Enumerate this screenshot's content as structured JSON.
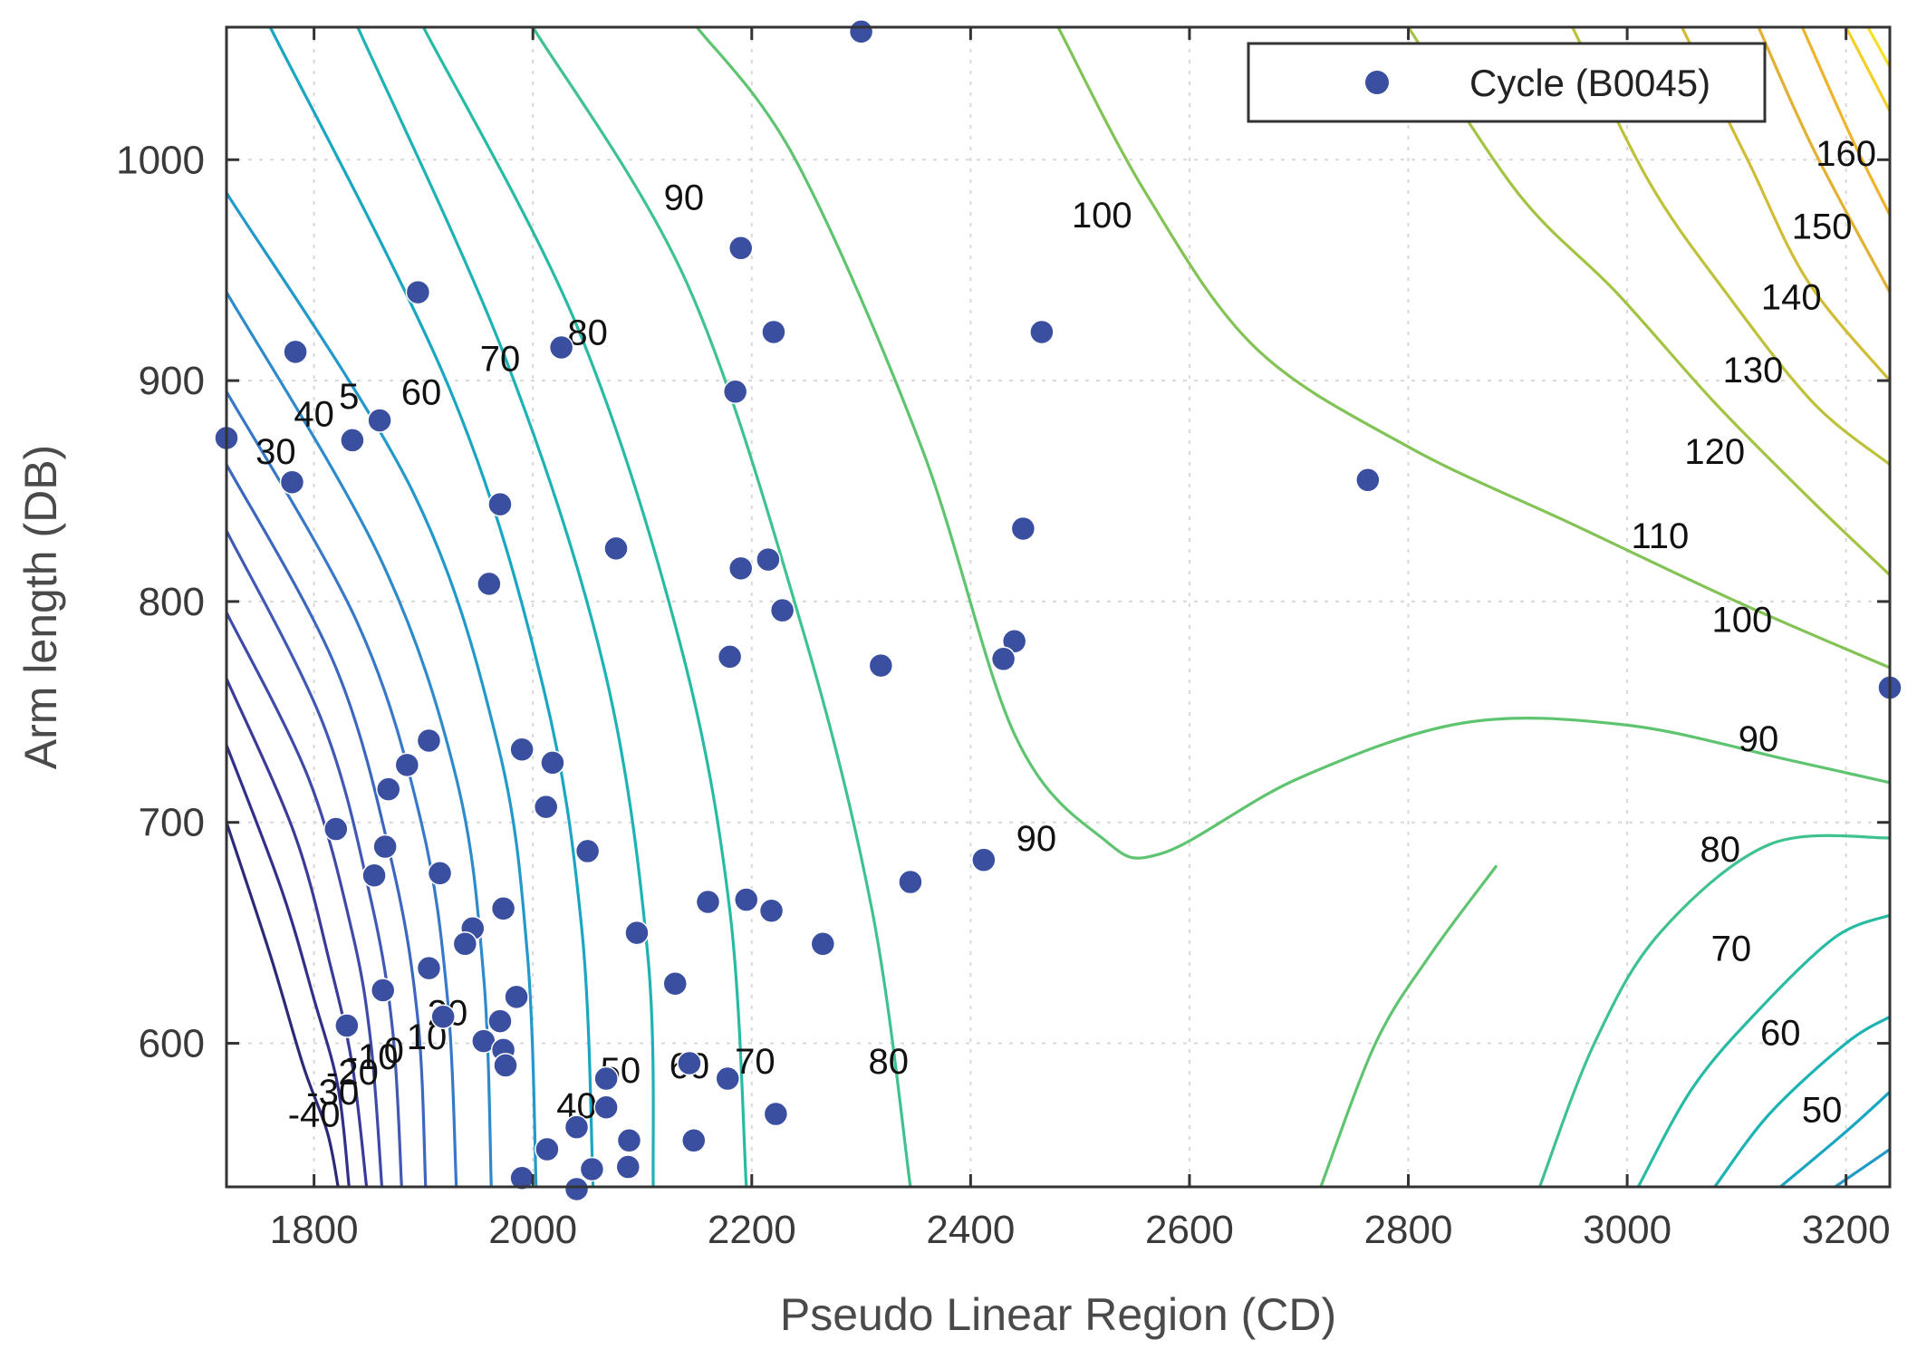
{
  "chart_data": {
    "type": "scatter",
    "subtype": "contour-overlay",
    "title": "",
    "xlabel": "Pseudo Linear Region (CD)",
    "ylabel": "Arm length (DB)",
    "xlim": [
      1720,
      3240
    ],
    "ylim": [
      535,
      1060
    ],
    "xticks": [
      1800,
      2000,
      2200,
      2400,
      2600,
      2800,
      3000,
      3200
    ],
    "yticks": [
      600,
      700,
      800,
      900,
      1000
    ],
    "xtick_labels": [
      "1800",
      "2000",
      "2200",
      "2400",
      "2600",
      "2800",
      "3000",
      "3200"
    ],
    "ytick_labels": [
      "600",
      "700",
      "800",
      "900",
      "1000"
    ],
    "grid": true,
    "legend": {
      "position": "top-right",
      "entries": [
        "Cycle (B0045)"
      ]
    },
    "series": [
      {
        "name": "Cycle (B0045)",
        "color": "#3a4fa0",
        "points": [
          [
            1720,
            874
          ],
          [
            1783,
            913
          ],
          [
            1780,
            854
          ],
          [
            1835,
            873
          ],
          [
            1860,
            882
          ],
          [
            1895,
            940
          ],
          [
            1970,
            844
          ],
          [
            1960,
            808
          ],
          [
            2026,
            915
          ],
          [
            2076,
            824
          ],
          [
            2190,
            960
          ],
          [
            2185,
            895
          ],
          [
            2220,
            922
          ],
          [
            2190,
            815
          ],
          [
            2215,
            819
          ],
          [
            2228,
            796
          ],
          [
            2180,
            775
          ],
          [
            2318,
            771
          ],
          [
            2300,
            1058
          ],
          [
            2465,
            922
          ],
          [
            2448,
            833
          ],
          [
            2440,
            782
          ],
          [
            2430,
            774
          ],
          [
            2763,
            855
          ],
          [
            3240,
            761
          ],
          [
            1905,
            737
          ],
          [
            1990,
            733
          ],
          [
            2018,
            727
          ],
          [
            1885,
            726
          ],
          [
            1868,
            715
          ],
          [
            2012,
            707
          ],
          [
            1820,
            697
          ],
          [
            1865,
            689
          ],
          [
            2050,
            687
          ],
          [
            1855,
            676
          ],
          [
            1915,
            677
          ],
          [
            2345,
            673
          ],
          [
            2412,
            683
          ],
          [
            2160,
            664
          ],
          [
            2195,
            665
          ],
          [
            2218,
            660
          ],
          [
            1973,
            661
          ],
          [
            2265,
            645
          ],
          [
            2095,
            650
          ],
          [
            1945,
            652
          ],
          [
            1938,
            645
          ],
          [
            1905,
            634
          ],
          [
            2130,
            627
          ],
          [
            1863,
            624
          ],
          [
            1985,
            621
          ],
          [
            1918,
            612
          ],
          [
            1970,
            610
          ],
          [
            1830,
            608
          ],
          [
            1955,
            601
          ],
          [
            1973,
            597
          ],
          [
            1975,
            590
          ],
          [
            2143,
            591
          ],
          [
            2178,
            584
          ],
          [
            2067,
            584
          ],
          [
            2067,
            571
          ],
          [
            2222,
            568
          ],
          [
            2040,
            562
          ],
          [
            2088,
            556
          ],
          [
            2147,
            556
          ],
          [
            2013,
            552
          ],
          [
            2054,
            543
          ],
          [
            2087,
            544
          ],
          [
            1990,
            539
          ],
          [
            2040,
            534
          ]
        ]
      }
    ],
    "contours": [
      {
        "level": -40,
        "label": "-40",
        "color": "#2c2a78",
        "points": [
          [
            1720,
            700
          ],
          [
            1760,
            640
          ],
          [
            1790,
            590
          ],
          [
            1812,
            560
          ],
          [
            1822,
            535
          ]
        ]
      },
      {
        "level": -30,
        "label": "-30",
        "color": "#322f8a",
        "points": [
          [
            1720,
            735
          ],
          [
            1770,
            670
          ],
          [
            1800,
            620
          ],
          [
            1822,
            580
          ],
          [
            1832,
            535
          ]
        ]
      },
      {
        "level": -20,
        "label": "-20",
        "color": "#3a3a99",
        "points": [
          [
            1720,
            765
          ],
          [
            1782,
            695
          ],
          [
            1815,
            635
          ],
          [
            1835,
            590
          ],
          [
            1848,
            535
          ]
        ]
      },
      {
        "level": -10,
        "label": "-10",
        "color": "#3f4aa8",
        "points": [
          [
            1720,
            795
          ],
          [
            1795,
            720
          ],
          [
            1835,
            650
          ],
          [
            1852,
            600
          ],
          [
            1862,
            535
          ]
        ]
      },
      {
        "level": 0,
        "label": "0",
        "color": "#4158b4",
        "points": [
          [
            1720,
            832
          ],
          [
            1808,
            745
          ],
          [
            1852,
            665
          ],
          [
            1872,
            605
          ],
          [
            1880,
            535
          ]
        ]
      },
      {
        "level": 10,
        "label": "10",
        "color": "#3d67bf",
        "points": [
          [
            1720,
            862
          ],
          [
            1820,
            770
          ],
          [
            1872,
            680
          ],
          [
            1895,
            610
          ],
          [
            1902,
            535
          ]
        ]
      },
      {
        "level": 20,
        "label": "20",
        "color": "#3878c8",
        "points": [
          [
            1720,
            895
          ],
          [
            1840,
            790
          ],
          [
            1898,
            700
          ],
          [
            1922,
            620
          ],
          [
            1930,
            535
          ]
        ]
      },
      {
        "level": 30,
        "label": "30",
        "color": "#2e8acb",
        "points": [
          [
            1720,
            940
          ],
          [
            1860,
            820
          ],
          [
            1930,
            720
          ],
          [
            1955,
            630
          ],
          [
            1962,
            535
          ]
        ]
      },
      {
        "level": 40,
        "label": "40",
        "color": "#2299c9",
        "points": [
          [
            1720,
            985
          ],
          [
            1890,
            850
          ],
          [
            1968,
            735
          ],
          [
            1995,
            640
          ],
          [
            2003,
            535
          ]
        ]
      },
      {
        "level": 50,
        "label": "50",
        "color": "#18a6c2",
        "points": [
          [
            1760,
            1060
          ],
          [
            1925,
            895
          ],
          [
            2010,
            760
          ],
          [
            2045,
            650
          ],
          [
            2055,
            535
          ]
        ]
      },
      {
        "level": 60,
        "label": "60",
        "color": "#1db2b4",
        "points": [
          [
            1840,
            1060
          ],
          [
            1975,
            910
          ],
          [
            2065,
            770
          ],
          [
            2105,
            640
          ],
          [
            2110,
            535
          ]
        ]
      },
      {
        "level": 70,
        "label": "70",
        "color": "#28bba4",
        "points": [
          [
            1900,
            1060
          ],
          [
            2040,
            925
          ],
          [
            2135,
            780
          ],
          [
            2180,
            660
          ],
          [
            2195,
            535
          ]
        ]
      },
      {
        "level": 80,
        "label": "80",
        "color": "#3ec28f",
        "points": [
          [
            2000,
            1060
          ],
          [
            2140,
            945
          ],
          [
            2245,
            790
          ],
          [
            2310,
            660
          ],
          [
            2345,
            535
          ]
        ]
      },
      {
        "level": 90,
        "label": "90",
        "color": "#5ec46f",
        "points": [
          [
            2150,
            1060
          ],
          [
            2240,
            1000
          ],
          [
            2355,
            870
          ],
          [
            2440,
            740
          ],
          [
            2520,
            693
          ],
          [
            2575,
            686
          ],
          [
            2700,
            720
          ],
          [
            2850,
            745
          ],
          [
            3000,
            744
          ],
          [
            3150,
            728
          ],
          [
            3240,
            718
          ]
        ]
      },
      {
        "level": 100,
        "label": "100",
        "color": "#82c355",
        "points": [
          [
            2480,
            1060
          ],
          [
            2560,
            985
          ],
          [
            2660,
            915
          ],
          [
            2800,
            870
          ],
          [
            2950,
            835
          ],
          [
            3100,
            800
          ],
          [
            3240,
            770
          ]
        ]
      },
      {
        "level": 110,
        "label": "110",
        "color": "#a3c443",
        "points": [
          [
            2800,
            1060
          ],
          [
            2900,
            985
          ],
          [
            2990,
            940
          ],
          [
            3080,
            890
          ],
          [
            3170,
            845
          ],
          [
            3240,
            812
          ]
        ]
      },
      {
        "level": 120,
        "label": "120",
        "color": "#bdc23a",
        "points": [
          [
            2950,
            1060
          ],
          [
            3020,
            990
          ],
          [
            3090,
            940
          ],
          [
            3170,
            890
          ],
          [
            3240,
            862
          ]
        ]
      },
      {
        "level": 130,
        "label": "130",
        "color": "#d1bc35",
        "points": [
          [
            3050,
            1060
          ],
          [
            3110,
            1000
          ],
          [
            3165,
            945
          ],
          [
            3240,
            900
          ]
        ]
      },
      {
        "level": 140,
        "label": "140",
        "color": "#e2b032",
        "points": [
          [
            3120,
            1060
          ],
          [
            3170,
            1005
          ],
          [
            3240,
            940
          ]
        ]
      },
      {
        "level": 150,
        "label": "150",
        "color": "#eeb42e",
        "points": [
          [
            3160,
            1060
          ],
          [
            3205,
            1010
          ],
          [
            3240,
            975
          ]
        ]
      },
      {
        "level": 160,
        "label": "160",
        "color": "#f2cf2a",
        "points": [
          [
            3200,
            1060
          ],
          [
            3240,
            1022
          ]
        ]
      },
      {
        "level": 170,
        "label": "",
        "color": "#f5e226",
        "points": [
          [
            3220,
            1060
          ],
          [
            3240,
            1042
          ]
        ]
      },
      {
        "level": 80,
        "label": "80",
        "color": "#3ec28f",
        "points": [
          [
            2920,
            535
          ],
          [
            2970,
            600
          ],
          [
            3030,
            650
          ],
          [
            3130,
            690
          ],
          [
            3240,
            693
          ]
        ]
      },
      {
        "level": 70,
        "label": "70",
        "color": "#28bba4",
        "points": [
          [
            3010,
            535
          ],
          [
            3060,
            580
          ],
          [
            3120,
            615
          ],
          [
            3190,
            648
          ],
          [
            3240,
            658
          ]
        ]
      },
      {
        "level": 60,
        "label": "60",
        "color": "#1db2b4",
        "points": [
          [
            3080,
            535
          ],
          [
            3130,
            568
          ],
          [
            3200,
            600
          ],
          [
            3240,
            612
          ]
        ]
      },
      {
        "level": 50,
        "label": "50",
        "color": "#18a6c2",
        "points": [
          [
            3140,
            535
          ],
          [
            3200,
            560
          ],
          [
            3240,
            578
          ]
        ]
      },
      {
        "level": 40,
        "label": "",
        "color": "#2299c9",
        "points": [
          [
            3190,
            535
          ],
          [
            3240,
            552
          ]
        ]
      },
      {
        "level": 90,
        "label": "",
        "color": "#5ec46f",
        "points": [
          [
            2720,
            535
          ],
          [
            2770,
            600
          ],
          [
            2820,
            640
          ],
          [
            2880,
            680
          ]
        ]
      }
    ],
    "contour_labels": [
      {
        "text": "30",
        "at": [
          1765,
          868
        ]
      },
      {
        "text": "40",
        "at": [
          1800,
          885
        ]
      },
      {
        "text": "5",
        "at": [
          1832,
          893
        ]
      },
      {
        "text": "60",
        "at": [
          1898,
          895
        ]
      },
      {
        "text": "70",
        "at": [
          1970,
          910
        ]
      },
      {
        "text": "80",
        "at": [
          2050,
          922
        ]
      },
      {
        "text": "90",
        "at": [
          2138,
          983
        ]
      },
      {
        "text": "100",
        "at": [
          2520,
          975
        ]
      },
      {
        "text": "160",
        "at": [
          3200,
          1003
        ]
      },
      {
        "text": "150",
        "at": [
          3178,
          970
        ]
      },
      {
        "text": "140",
        "at": [
          3150,
          938
        ]
      },
      {
        "text": "130",
        "at": [
          3115,
          905
        ]
      },
      {
        "text": "120",
        "at": [
          3080,
          868
        ]
      },
      {
        "text": "110",
        "at": [
          3030,
          830
        ]
      },
      {
        "text": "100",
        "at": [
          3105,
          792
        ]
      },
      {
        "text": "90",
        "at": [
          3120,
          738
        ]
      },
      {
        "text": "90",
        "at": [
          2460,
          693
        ]
      },
      {
        "text": "80",
        "at": [
          3085,
          688
        ]
      },
      {
        "text": "70",
        "at": [
          3095,
          643
        ]
      },
      {
        "text": "60",
        "at": [
          3140,
          605
        ]
      },
      {
        "text": "50",
        "at": [
          3178,
          570
        ]
      },
      {
        "text": "80",
        "at": [
          2325,
          592
        ]
      },
      {
        "text": "70",
        "at": [
          2203,
          592
        ]
      },
      {
        "text": "60",
        "at": [
          2143,
          590
        ]
      },
      {
        "text": "50",
        "at": [
          2080,
          588
        ]
      },
      {
        "text": "40",
        "at": [
          2040,
          572
        ]
      },
      {
        "text": "20",
        "at": [
          1922,
          614
        ]
      },
      {
        "text": "10",
        "at": [
          1903,
          603
        ]
      },
      {
        "text": "0",
        "at": [
          1873,
          597
        ]
      },
      {
        "text": "-10",
        "at": [
          1853,
          594
        ]
      },
      {
        "text": "-20",
        "at": [
          1835,
          587
        ]
      },
      {
        "text": "-30",
        "at": [
          1817,
          578
        ]
      },
      {
        "text": "-40",
        "at": [
          1800,
          568
        ]
      }
    ]
  }
}
